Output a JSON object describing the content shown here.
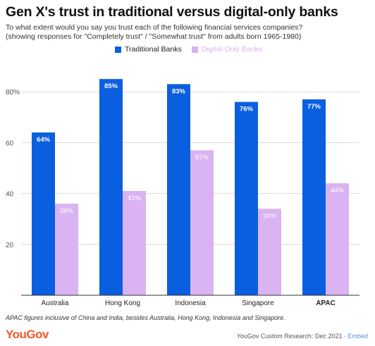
{
  "title": "Gen X's trust in traditional versus digital-only banks",
  "subtitle_line1": "To what extent would you say you trust each of the following financial services companies?",
  "subtitle_line2": "(showing responses for \"Completely trust\" / \"Somewhat trust\" from adults born 1965-1980)",
  "footnote": "APAC figures inclusive of China and India, besides Australia, Hong Kong, Indonesia and Singapore.",
  "logo": "YouGov",
  "credit": "YouGov Custom Research: Dec 2021",
  "credit_separator": " · ",
  "credit_link": "Embed",
  "colors": {
    "traditional": "#0a5fe0",
    "digital": "#d9b3f2",
    "grid": "#d9d9d9",
    "axis": "#333333"
  },
  "chart_data": {
    "type": "bar",
    "categories": [
      "Australia",
      "Hong Kong",
      "Indonesia",
      "Singapore",
      "APAC"
    ],
    "series": [
      {
        "name": "Traditional Banks",
        "values": [
          64,
          85,
          83,
          76,
          77
        ],
        "labels": [
          "64%",
          "85%",
          "83%",
          "76%",
          "77%"
        ]
      },
      {
        "name": "Digital-Only Banks",
        "values": [
          36,
          41,
          57,
          34,
          44
        ],
        "labels": [
          "36%",
          "41%",
          "57%",
          "34%",
          "44%"
        ]
      }
    ],
    "yticks": [
      {
        "value": 20,
        "label": "20"
      },
      {
        "value": 40,
        "label": "40"
      },
      {
        "value": 60,
        "label": "60"
      },
      {
        "value": 80,
        "label": "80%"
      }
    ],
    "ylim": [
      0,
      100
    ],
    "grid": true,
    "legend_position": "top"
  }
}
